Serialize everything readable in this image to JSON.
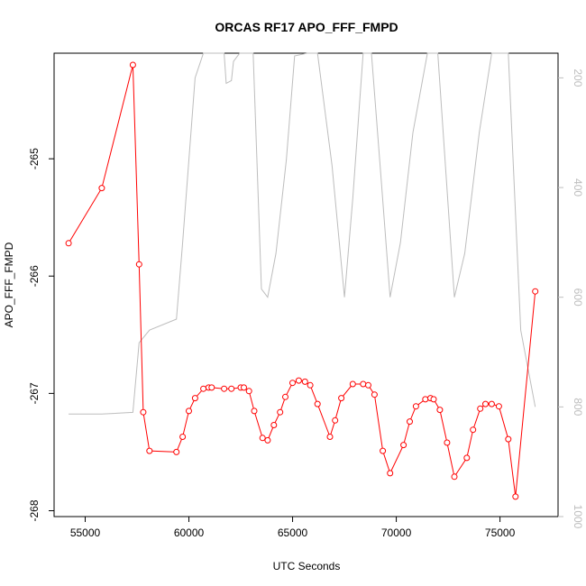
{
  "chart_data": {
    "type": "line",
    "title": "ORCAS RF17 APO_FFF_FMPD",
    "xlabel": "UTC Seconds",
    "ylabel": "APO_FFF_FMPD",
    "y2label": "",
    "xlim": [
      53500,
      77800
    ],
    "ylim": [
      -268.05,
      -264.1
    ],
    "y2lim": [
      1000,
      155
    ],
    "y2_reversed": true,
    "x_ticks": [
      55000,
      60000,
      65000,
      70000,
      75000
    ],
    "y_ticks": [
      -268,
      -267,
      -266,
      -265
    ],
    "y2_ticks": [
      200,
      400,
      600,
      800,
      1000
    ],
    "series": [
      {
        "color": "#ff0000",
        "marker": "open-circle",
        "axis": "left",
        "x": [
          54200,
          55800,
          57300,
          57600,
          57800,
          58100,
          59400,
          59700,
          60000,
          60300,
          60700,
          60950,
          61100,
          61700,
          62050,
          62500,
          62650,
          62900,
          63150,
          63550,
          63800,
          64100,
          64400,
          64650,
          65000,
          65300,
          65600,
          65850,
          66200,
          66800,
          67050,
          67350,
          67900,
          68400,
          68650,
          68950,
          69350,
          69700,
          70350,
          70650,
          70950,
          71400,
          71650,
          71800,
          72100,
          72450,
          72800,
          73400,
          73700,
          74050,
          74300,
          74600,
          74950,
          75400,
          75750,
          76700
        ],
        "y": [
          -265.72,
          -265.25,
          -264.2,
          -265.9,
          -267.16,
          -267.49,
          -267.5,
          -267.37,
          -267.15,
          -267.04,
          -266.96,
          -266.95,
          -266.95,
          -266.96,
          -266.96,
          -266.95,
          -266.95,
          -266.98,
          -267.15,
          -267.38,
          -267.4,
          -267.27,
          -267.16,
          -267.03,
          -266.91,
          -266.89,
          -266.9,
          -266.93,
          -267.09,
          -267.37,
          -267.23,
          -267.04,
          -266.92,
          -266.92,
          -266.93,
          -267.01,
          -267.49,
          -267.68,
          -267.44,
          -267.24,
          -267.11,
          -267.05,
          -267.04,
          -267.05,
          -267.14,
          -267.42,
          -267.71,
          -267.55,
          -267.31,
          -267.13,
          -267.09,
          -267.09,
          -267.11,
          -267.39,
          -267.88,
          -266.13
        ]
      },
      {
        "color": "#bdbdbd",
        "marker": "none",
        "axis": "right",
        "x": [
          54200,
          55800,
          57300,
          57600,
          58100,
          59400,
          59700,
          60000,
          60300,
          60700,
          61100,
          61700,
          61800,
          62050,
          62150,
          62450,
          62700,
          63100,
          63500,
          63800,
          64200,
          64700,
          65100,
          65700,
          66200,
          66900,
          67500,
          67900,
          68400,
          68800,
          69300,
          69700,
          70200,
          70800,
          71500,
          72000,
          72800,
          73300,
          74000,
          74600,
          75100,
          75400,
          76000,
          76700
        ],
        "y": [
          813,
          813,
          810,
          683,
          660,
          640,
          500,
          350,
          200,
          155,
          155,
          155,
          210,
          205,
          170,
          155,
          155,
          155,
          585,
          600,
          520,
          350,
          160,
          155,
          155,
          360,
          600,
          420,
          155,
          155,
          400,
          600,
          500,
          300,
          155,
          155,
          600,
          520,
          300,
          155,
          155,
          155,
          660,
          800
        ]
      }
    ]
  }
}
